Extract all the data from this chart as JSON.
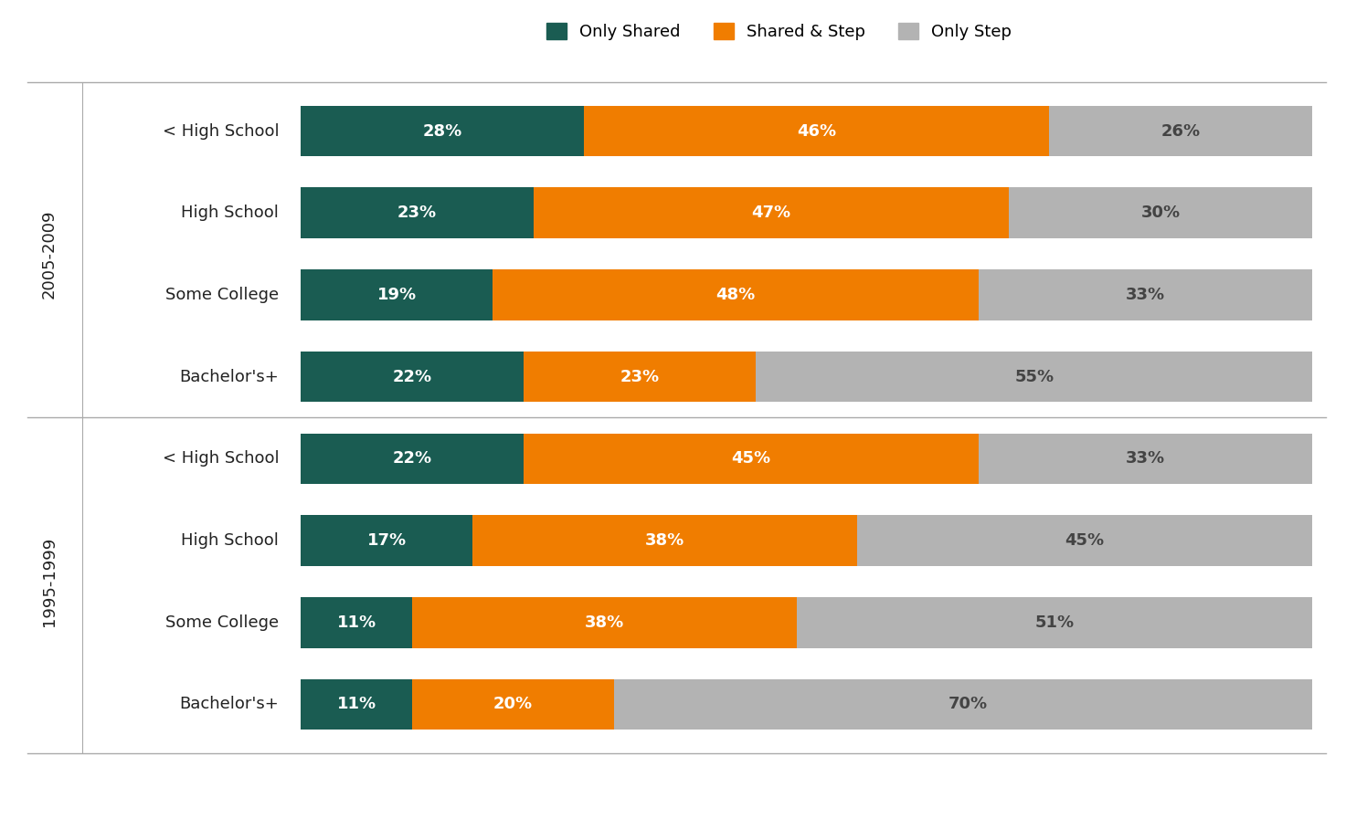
{
  "categories_group1": [
    "< High School",
    "High School",
    "Some College",
    "Bachelor's+"
  ],
  "categories_group2": [
    "< High School",
    "High School",
    "Some College",
    "Bachelor's+"
  ],
  "group_label1": "2005-2009",
  "group_label2": "1995-1999",
  "only_shared": [
    28,
    23,
    19,
    22,
    22,
    17,
    11,
    11
  ],
  "shared_step": [
    46,
    47,
    48,
    23,
    45,
    38,
    38,
    20
  ],
  "only_step": [
    26,
    30,
    33,
    55,
    33,
    45,
    51,
    70
  ],
  "color_only_shared": "#1a5c52",
  "color_shared_step": "#f07d00",
  "color_only_step": "#b3b3b3",
  "legend_labels": [
    "Only Shared",
    "Shared & Step",
    "Only Step"
  ],
  "background_color": "#ffffff",
  "text_white": "#ffffff",
  "text_dark": "#444444",
  "bar_height": 0.62,
  "fontsize_bar": 13,
  "fontsize_label": 13,
  "fontsize_group": 13,
  "fontsize_legend": 13
}
